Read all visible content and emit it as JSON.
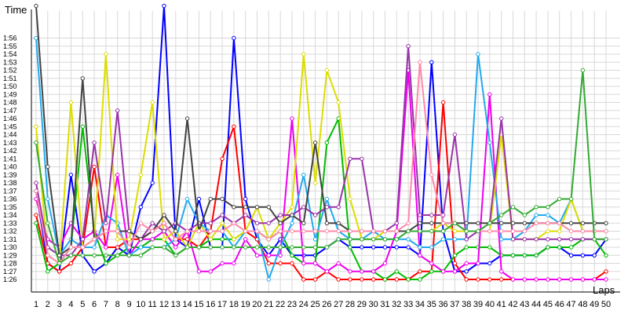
{
  "chart_data": {
    "type": "line",
    "ylabel": "Time",
    "xlabel": "Laps",
    "x": [
      1,
      2,
      3,
      4,
      5,
      6,
      7,
      8,
      9,
      10,
      11,
      12,
      13,
      14,
      15,
      16,
      17,
      18,
      19,
      20,
      21,
      22,
      23,
      24,
      25,
      26,
      27,
      28,
      29,
      30,
      31,
      32,
      33,
      34,
      35,
      36,
      37,
      38,
      39,
      40,
      41,
      42,
      43,
      44,
      45,
      46,
      47,
      48,
      49,
      50
    ],
    "y_ticks": [
      "1:26",
      "1:27",
      "1:28",
      "1:29",
      "1:30",
      "1:31",
      "1:32",
      "1:33",
      "1:34",
      "1:35",
      "1:36",
      "1:37",
      "1:38",
      "1:39",
      "1:40",
      "1:41",
      "1:42",
      "1:43",
      "1:44",
      "1:45",
      "1:46",
      "1:47",
      "1:48",
      "1:49",
      "1:50",
      "1:51",
      "1:52",
      "1:53",
      "1:54",
      "1:55",
      "1:56"
    ],
    "ylim_seconds": [
      86,
      116
    ],
    "grid": true,
    "series": [
      {
        "color": "#0000ff",
        "values": [
          97,
          88,
          87,
          99,
          89,
          87,
          88,
          90,
          89,
          95,
          98,
          120,
          91,
          90,
          96,
          90,
          90,
          116,
          96,
          91,
          89,
          91,
          89,
          89,
          89,
          90,
          91,
          90,
          90,
          90,
          90,
          90,
          90,
          89,
          113,
          92,
          87,
          87,
          88,
          88,
          89,
          89,
          89,
          89,
          90,
          90,
          89,
          89,
          89,
          91
        ]
      },
      {
        "color": "#ff0000",
        "values": [
          94,
          88,
          87,
          88,
          90,
          100,
          90,
          90,
          91,
          91,
          92,
          93,
          91,
          91,
          90,
          92,
          101,
          105,
          92,
          91,
          88,
          88,
          88,
          86,
          86,
          87,
          86,
          86,
          86,
          86,
          86,
          86,
          86,
          87,
          87,
          108,
          88,
          86,
          86,
          86,
          86,
          86,
          86,
          86,
          86,
          86,
          86,
          86,
          86,
          87
        ]
      },
      {
        "color": "#00bb00",
        "values": [
          93,
          87,
          88,
          90,
          105,
          92,
          88,
          89,
          90,
          90,
          91,
          91,
          89,
          90,
          90,
          91,
          91,
          91,
          92,
          92,
          91,
          92,
          89,
          88,
          88,
          103,
          106,
          90,
          87,
          87,
          86,
          87,
          86,
          86,
          87,
          87,
          89,
          90,
          90,
          90,
          89,
          89,
          89,
          89,
          90,
          90,
          90,
          91,
          91,
          89
        ]
      },
      {
        "color": "#ee00ee",
        "values": [
          96,
          91,
          90,
          93,
          91,
          92,
          90,
          99,
          89,
          91,
          91,
          92,
          90,
          92,
          87,
          87,
          88,
          88,
          91,
          89,
          89,
          89,
          106,
          88,
          88,
          87,
          88,
          87,
          87,
          87,
          88,
          92,
          112,
          89,
          88,
          87,
          87,
          88,
          88,
          109,
          87,
          86,
          86,
          86,
          86,
          86,
          86,
          86,
          86,
          86
        ]
      },
      {
        "color": "#22aaee",
        "values": [
          116,
          96,
          89,
          91,
          90,
          90,
          94,
          93,
          89,
          90,
          90,
          90,
          91,
          96,
          93,
          92,
          92,
          90,
          92,
          92,
          86,
          90,
          93,
          99,
          91,
          96,
          92,
          91,
          91,
          92,
          91,
          91,
          91,
          90,
          90,
          91,
          91,
          91,
          114,
          103,
          91,
          91,
          92,
          94,
          94,
          93,
          96,
          92,
          92,
          92
        ]
      },
      {
        "color": "#dddd00",
        "values": [
          105,
          89,
          88,
          108,
          90,
          91,
          114,
          91,
          91,
          99,
          108,
          91,
          92,
          90,
          93,
          91,
          93,
          91,
          92,
          95,
          91,
          93,
          95,
          114,
          98,
          112,
          108,
          96,
          91,
          91,
          92,
          92,
          92,
          92,
          92,
          93,
          92,
          92,
          92,
          92,
          104,
          91,
          91,
          91,
          92,
          92,
          96,
          92,
          92,
          92
        ]
      },
      {
        "color": "#9933aa",
        "values": [
          98,
          90,
          89,
          89,
          91,
          103,
          93,
          107,
          92,
          91,
          93,
          92,
          93,
          92,
          93,
          93,
          94,
          93,
          94,
          93,
          93,
          94,
          94,
          95,
          94,
          95,
          95,
          101,
          101,
          92,
          92,
          93,
          115,
          94,
          94,
          94,
          104,
          91,
          92,
          93,
          106,
          91,
          91,
          91,
          91,
          91,
          91,
          91,
          91,
          91
        ]
      },
      {
        "color": "#444444",
        "values": [
          120,
          100,
          89,
          90,
          111,
          91,
          92,
          92,
          92,
          91,
          92,
          94,
          92,
          106,
          92,
          96,
          96,
          95,
          95,
          95,
          95,
          93,
          94,
          93,
          103,
          93,
          93,
          92,
          92,
          92,
          92,
          92,
          92,
          93,
          93,
          93,
          93,
          93,
          93,
          93,
          93,
          93,
          93,
          93,
          93,
          93,
          93,
          93,
          93,
          93
        ]
      },
      {
        "color": "#ff88aa",
        "values": [
          97,
          89,
          88,
          90,
          90,
          91,
          92,
          92,
          90,
          93,
          92,
          93,
          91,
          92,
          92,
          92,
          92,
          93,
          92,
          92,
          91,
          92,
          92,
          92,
          92,
          92,
          92,
          92,
          92,
          92,
          92,
          92,
          93,
          113,
          99,
          93,
          93,
          92,
          92,
          92,
          92,
          92,
          92,
          93,
          93,
          93,
          92,
          92,
          92,
          92
        ]
      },
      {
        "color": "#33aa33",
        "values": [
          103,
          93,
          88,
          89,
          89,
          89,
          89,
          89,
          89,
          89,
          90,
          90,
          89,
          90,
          90,
          90,
          90,
          90,
          90,
          90,
          90,
          90,
          90,
          90,
          90,
          90,
          91,
          91,
          91,
          91,
          91,
          91,
          92,
          92,
          92,
          92,
          93,
          92,
          92,
          93,
          94,
          95,
          94,
          95,
          95,
          96,
          96,
          112,
          91,
          91
        ]
      }
    ]
  }
}
